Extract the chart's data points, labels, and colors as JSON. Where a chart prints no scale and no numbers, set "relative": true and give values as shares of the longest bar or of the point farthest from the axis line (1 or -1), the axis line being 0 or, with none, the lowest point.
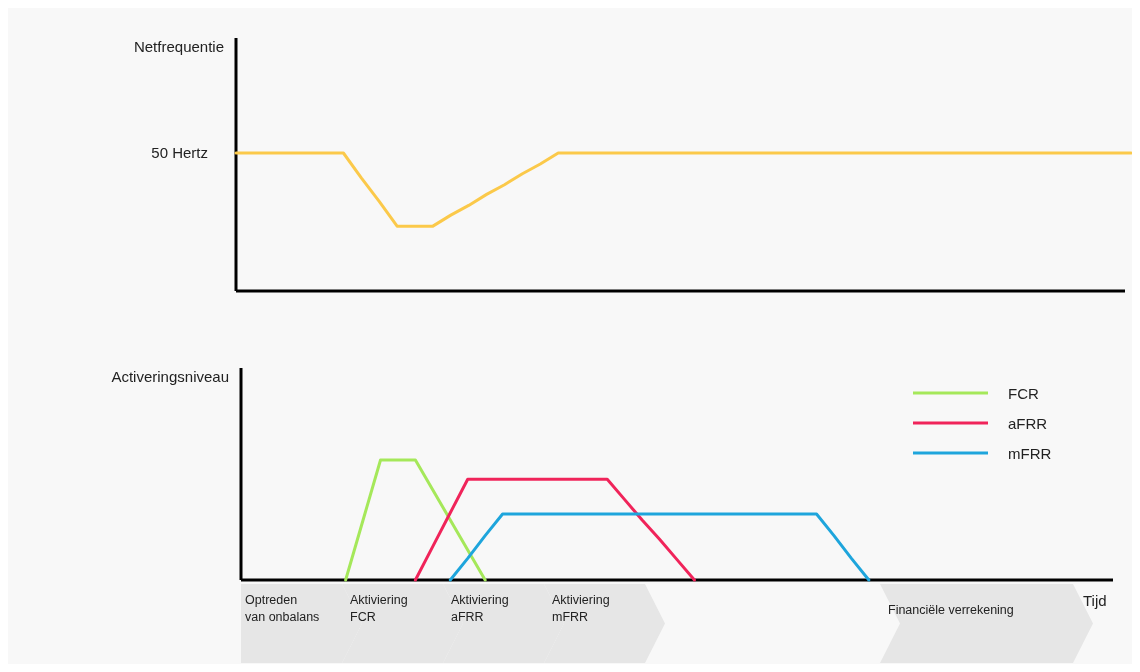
{
  "chart_data": [
    {
      "type": "line",
      "relative": true,
      "ylabel": "Netfrequentie",
      "annotations": [
        "50 Hertz"
      ],
      "categories": [
        null,
        null,
        null,
        null,
        null,
        null,
        null,
        null,
        null,
        null,
        null,
        null,
        null,
        null,
        null,
        null,
        null,
        null,
        null,
        null,
        null,
        null,
        null,
        null,
        null,
        null,
        null,
        null,
        null,
        null,
        null,
        null,
        null,
        null,
        null,
        null,
        null,
        null,
        null,
        null,
        null,
        null,
        null,
        null,
        null,
        null,
        null,
        null,
        null,
        null,
        null
      ],
      "series": [
        {
          "color": "#fbc94a",
          "values": [
            1,
            1,
            1,
            1,
            1,
            1,
            1,
            0.82,
            0.65,
            0.47,
            0.47,
            0.47,
            0.55,
            0.62,
            0.7,
            0.77,
            0.85,
            0.92,
            1,
            1,
            1,
            1,
            1,
            1,
            1,
            1,
            1,
            1,
            1,
            1,
            1,
            1,
            1,
            1,
            1,
            1,
            1,
            1,
            1,
            1,
            1,
            1,
            1,
            1,
            1,
            1,
            1,
            1,
            1,
            1,
            1
          ]
        }
      ]
    },
    {
      "type": "line",
      "relative": true,
      "ylabel": "Activeringsniveau",
      "xlabel": "Tijd",
      "legend": "top right",
      "annotations": [
        "Optreden\nvan onbalans",
        "Aktiviering\nFCR",
        "Aktiviering\naFRR",
        "Aktiviering\nmFRR",
        "Financiële verrekening"
      ],
      "categories": [
        null,
        null,
        null,
        null,
        null,
        null,
        null,
        null,
        null,
        null,
        null,
        null,
        null,
        null,
        null,
        null,
        null,
        null,
        null,
        null,
        null,
        null,
        null,
        null,
        null,
        null,
        null,
        null,
        null,
        null,
        null,
        null,
        null,
        null,
        null,
        null,
        null,
        null,
        null,
        null,
        null,
        null,
        null,
        null,
        null,
        null,
        null,
        null,
        null,
        null,
        null
      ],
      "series": [
        {
          "name": "FCR",
          "color": "#a5e85a",
          "values": [
            null,
            null,
            null,
            null,
            null,
            null,
            0,
            0.5,
            1,
            1,
            1,
            0.75,
            0.5,
            0.25,
            0,
            null,
            null,
            null,
            null,
            null,
            null,
            null,
            null,
            null,
            null,
            null,
            null,
            null,
            null,
            null,
            null,
            null,
            null,
            null,
            null,
            null,
            null,
            null,
            null,
            null,
            null,
            null,
            null,
            null,
            null,
            null,
            null,
            null,
            null,
            null,
            null
          ]
        },
        {
          "name": "aFRR",
          "color": "#f0245a",
          "values": [
            null,
            null,
            null,
            null,
            null,
            null,
            null,
            null,
            null,
            null,
            0,
            0.28,
            0.56,
            0.84,
            0.84,
            0.84,
            0.84,
            0.84,
            0.84,
            0.84,
            0.84,
            0.84,
            0.67,
            0.5,
            0.34,
            0.17,
            0,
            null,
            null,
            null,
            null,
            null,
            null,
            null,
            null,
            null,
            null,
            null,
            null,
            null,
            null,
            null,
            null,
            null,
            null,
            null,
            null,
            null,
            null,
            null,
            null
          ]
        },
        {
          "name": "mFRR",
          "color": "#1ea5dc",
          "values": [
            null,
            null,
            null,
            null,
            null,
            null,
            null,
            null,
            null,
            null,
            null,
            null,
            0,
            0.18,
            0.37,
            0.55,
            0.55,
            0.55,
            0.55,
            0.55,
            0.55,
            0.55,
            0.55,
            0.55,
            0.55,
            0.55,
            0.55,
            0.55,
            0.55,
            0.55,
            0.55,
            0.55,
            0.55,
            0.55,
            0.37,
            0.18,
            0,
            null,
            null,
            null,
            null,
            null,
            null,
            null,
            null,
            null,
            null,
            null,
            null,
            null,
            null
          ]
        }
      ]
    }
  ]
}
